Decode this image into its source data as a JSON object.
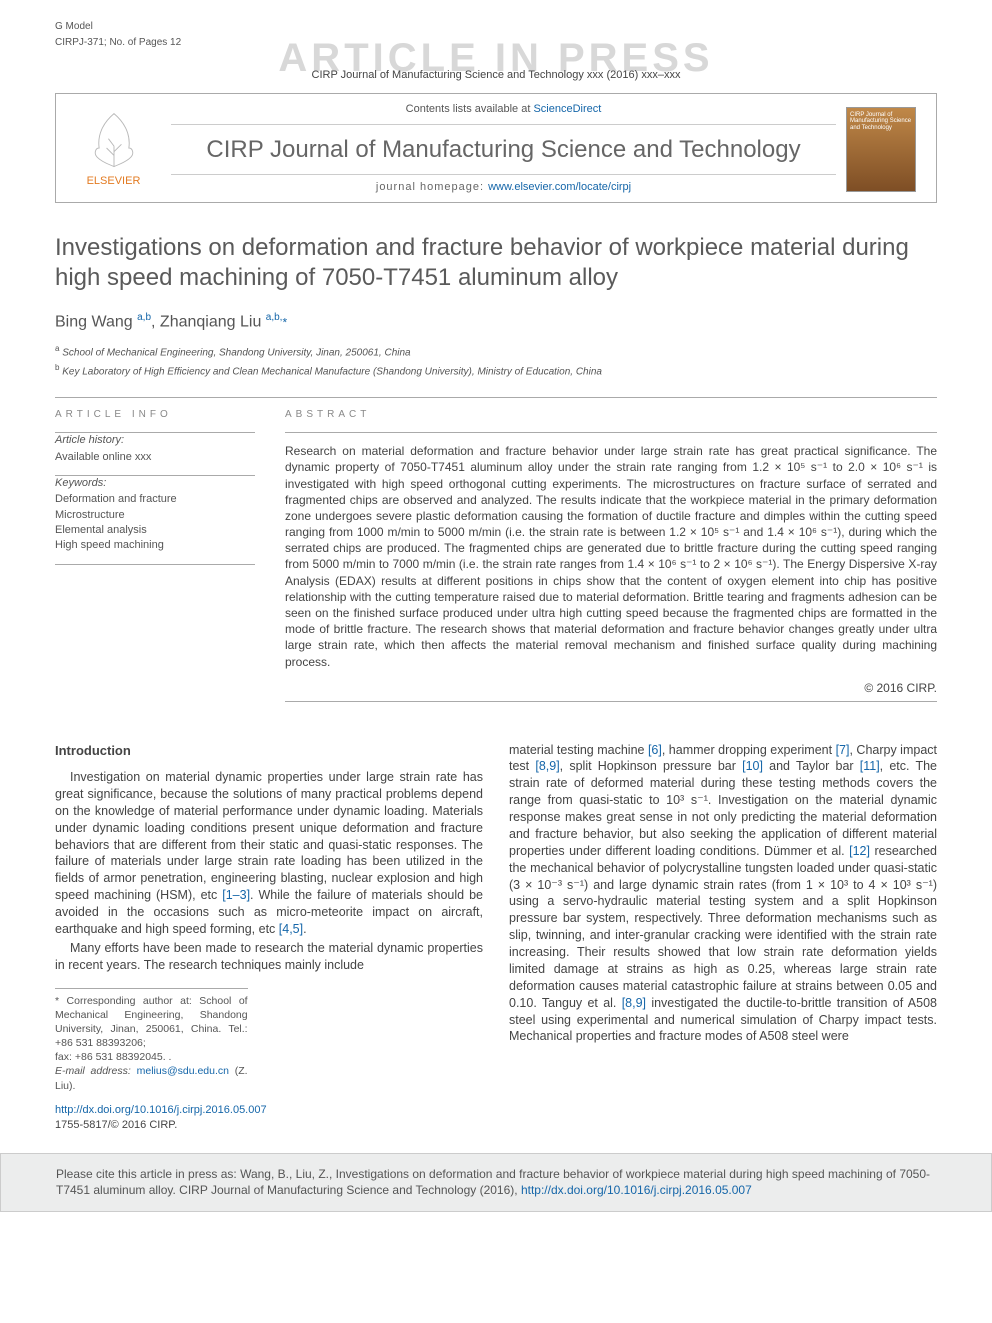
{
  "header": {
    "gmodel_label": "G Model",
    "gmodel_code": "CIRPJ-371; No. of Pages 12",
    "watermark": "ARTICLE IN PRESS",
    "citation_top": "CIRP Journal of Manufacturing Science and Technology xxx (2016) xxx–xxx"
  },
  "masthead": {
    "contents_prefix": "Contents lists available at ",
    "contents_link": "ScienceDirect",
    "journal_title": "CIRP Journal of Manufacturing Science and Technology",
    "homepage_prefix": "journal homepage: ",
    "homepage_link": "www.elsevier.com/locate/cirpj",
    "publisher": "ELSEVIER",
    "cover_text": "CIRP Journal of Manufacturing Science and Technology"
  },
  "article": {
    "title": "Investigations on deformation and fracture behavior of workpiece material during high speed machining of 7050-T7451 aluminum alloy",
    "authors_html": "Bing Wang <sup>a,b</sup>, Zhanqiang Liu <sup>a,b,</sup><span class='star'>*</span>",
    "affiliations": [
      "a School of Mechanical Engineering, Shandong University, Jinan, 250061, China",
      "b Key Laboratory of High Efficiency and Clean Mechanical Manufacture (Shandong University), Ministry of Education, China"
    ]
  },
  "info": {
    "label": "ARTICLE INFO",
    "history_label": "Article history:",
    "history_value": "Available online xxx",
    "keywords_label": "Keywords:",
    "keywords": [
      "Deformation and fracture",
      "Microstructure",
      "Elemental analysis",
      "High speed machining"
    ]
  },
  "abstract": {
    "label": "ABSTRACT",
    "text": "Research on material deformation and fracture behavior under large strain rate has great practical significance. The dynamic property of 7050-T7451 aluminum alloy under the strain rate ranging from 1.2 × 10⁵ s⁻¹ to 2.0 × 10⁶ s⁻¹ is investigated with high speed orthogonal cutting experiments. The microstructures on fracture surface of serrated and fragmented chips are observed and analyzed. The results indicate that the workpiece material in the primary deformation zone undergoes severe plastic deformation causing the formation of ductile fracture and dimples within the cutting speed ranging from 1000 m/min to 5000 m/min (i.e. the strain rate is between 1.2 × 10⁵ s⁻¹ and 1.4 × 10⁶ s⁻¹), during which the serrated chips are produced. The fragmented chips are generated due to brittle fracture during the cutting speed ranging from 5000 m/min to 7000 m/min (i.e. the strain rate ranges from 1.4 × 10⁶ s⁻¹ to 2 × 10⁶ s⁻¹). The Energy Dispersive X-ray Analysis (EDAX) results at different positions in chips show that the content of oxygen element into chip has positive relationship with the cutting temperature raised due to material deformation. Brittle tearing and fragments adhesion can be seen on the finished surface produced under ultra high cutting speed because the fragmented chips are formatted in the mode of brittle fracture. The research shows that material deformation and fracture behavior changes greatly under ultra large strain rate, which then affects the material removal mechanism and finished surface quality during machining process.",
    "copyright": "© 2016 CIRP."
  },
  "body": {
    "intro_heading": "Introduction",
    "p1": "Investigation on material dynamic properties under large strain rate has great significance, because the solutions of many practical problems depend on the knowledge of material performance under dynamic loading. Materials under dynamic loading conditions present unique deformation and fracture behaviors that are different from their static and quasi-static responses. The failure of materials under large strain rate loading has been utilized in the fields of armor penetration, engineering blasting, nuclear explosion and high speed machining (HSM), etc ",
    "p1_ref": "[1–3]",
    "p1b": ". While the failure of materials should be avoided in the occasions such as micro-meteorite impact on aircraft, earthquake and high speed forming, etc ",
    "p1_ref2": "[4,5]",
    "p1c": ".",
    "p2": "Many efforts have been made to research the material dynamic properties in recent years. The research techniques mainly include",
    "p3a": "material testing machine ",
    "r6": "[6]",
    "p3b": ", hammer dropping experiment ",
    "r7": "[7]",
    "p3c": ", Charpy impact test ",
    "r89": "[8,9]",
    "p3d": ", split Hopkinson pressure bar ",
    "r10": "[10]",
    "p3e": " and Taylor bar ",
    "r11": "[11]",
    "p3f": ", etc. The strain rate of deformed material during these testing methods covers the range from quasi-static to 10³ s⁻¹. Investigation on the material dynamic response makes great sense in not only predicting the material deformation and fracture behavior, but also seeking the application of different material properties under different loading conditions. Dümmer et al. ",
    "r12": "[12]",
    "p3g": " researched the mechanical behavior of polycrystalline tungsten loaded under quasi-static (3 × 10⁻³ s⁻¹) and large dynamic strain rates (from 1 × 10³ to 4 × 10³ s⁻¹) using a servo-hydraulic material testing system and a split Hopkinson pressure bar system, respectively. Three deformation mechanisms such as slip, twinning, and inter-granular cracking were identified with the strain rate increasing. Their results showed that low strain rate deformation yields limited damage at strains as high as 0.25, whereas large strain rate deformation causes material catastrophic failure at strains between 0.05 and 0.10. Tanguy et al. ",
    "r89b": "[8,9]",
    "p3h": " investigated the ductile-to-brittle transition of A508 steel using experimental and numerical simulation of Charpy impact tests. Mechanical properties and fracture modes of A508 steel were"
  },
  "footnotes": {
    "corr": "* Corresponding author at: School of Mechanical Engineering, Shandong University, Jinan, 250061, China. Tel.: +86 531 88393206;",
    "fax": "fax: +86 531 88392045. .",
    "email_label": "E-mail address: ",
    "email": "melius@sdu.edu.cn",
    "email_suffix": " (Z. Liu)."
  },
  "doi": {
    "url": "http://dx.doi.org/10.1016/j.cirpj.2016.05.007",
    "issn": "1755-5817/© 2016 CIRP."
  },
  "footer": {
    "text": "Please cite this article in press as: Wang, B., Liu, Z., Investigations on deformation and fracture behavior of workpiece material during high speed machining of 7050-T7451 aluminum alloy. CIRP Journal of Manufacturing Science and Technology (2016), ",
    "link": "http://dx.doi.org/10.1016/j.cirpj.2016.05.007"
  }
}
